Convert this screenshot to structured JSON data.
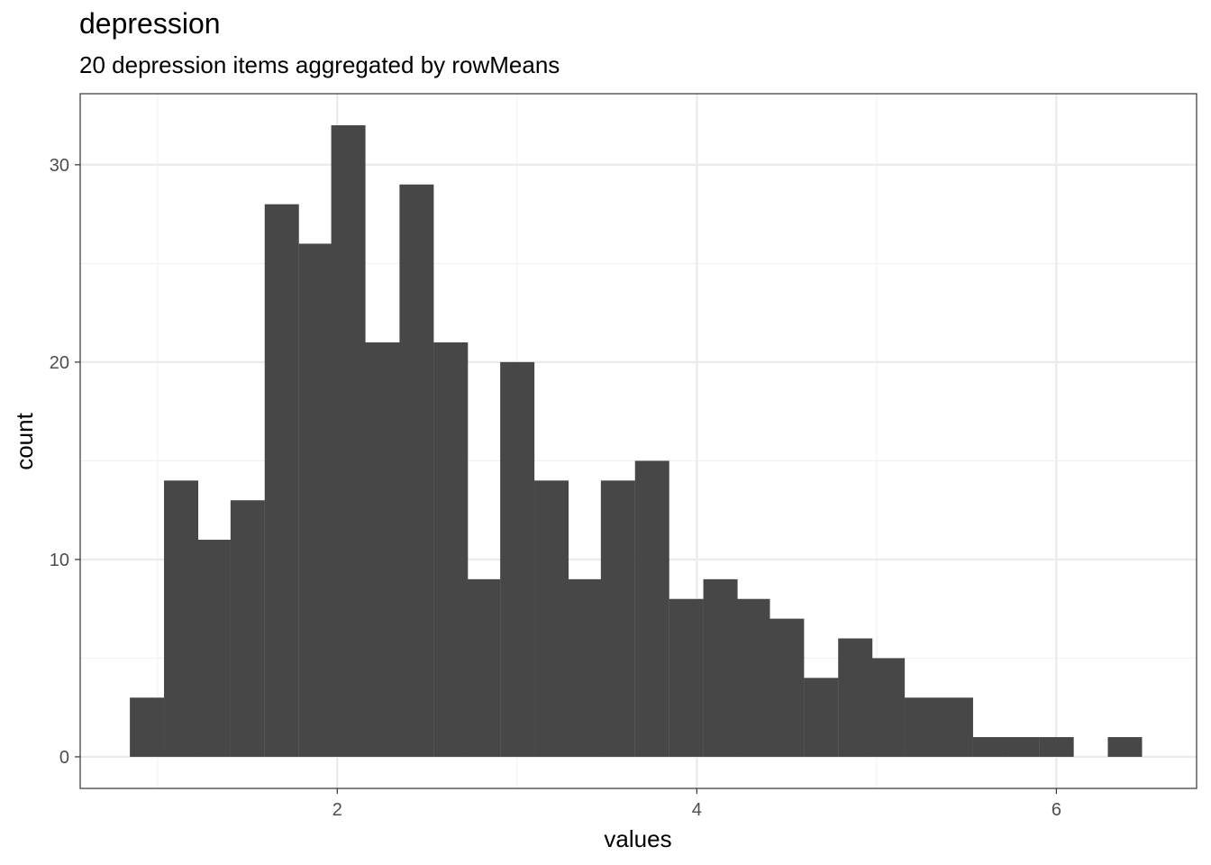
{
  "chart_data": {
    "type": "bar",
    "title": "depression",
    "subtitle": "20 depression items aggregated by rowMeans",
    "xlabel": "values",
    "ylabel": "count",
    "xlim": [
      0.57,
      6.78
    ],
    "ylim": [
      -1.6,
      33.6
    ],
    "x_ticks": [
      2,
      4,
      6
    ],
    "y_ticks": [
      0,
      10,
      20,
      30
    ],
    "x_minor_grid": [
      1,
      3,
      5
    ],
    "y_minor_grid": [
      5,
      15,
      25
    ],
    "grid": true,
    "bin_width": 0.1875,
    "bins": [
      {
        "x": 0.94,
        "count": 3
      },
      {
        "x": 1.13,
        "count": 14
      },
      {
        "x": 1.31,
        "count": 11
      },
      {
        "x": 1.5,
        "count": 13
      },
      {
        "x": 1.69,
        "count": 28
      },
      {
        "x": 1.88,
        "count": 26
      },
      {
        "x": 2.06,
        "count": 32
      },
      {
        "x": 2.25,
        "count": 21
      },
      {
        "x": 2.44,
        "count": 29
      },
      {
        "x": 2.63,
        "count": 21
      },
      {
        "x": 2.81,
        "count": 9
      },
      {
        "x": 3.0,
        "count": 20
      },
      {
        "x": 3.19,
        "count": 14
      },
      {
        "x": 3.38,
        "count": 9
      },
      {
        "x": 3.56,
        "count": 14
      },
      {
        "x": 3.75,
        "count": 15
      },
      {
        "x": 3.94,
        "count": 8
      },
      {
        "x": 4.13,
        "count": 9
      },
      {
        "x": 4.31,
        "count": 8
      },
      {
        "x": 4.5,
        "count": 7
      },
      {
        "x": 4.69,
        "count": 4
      },
      {
        "x": 4.88,
        "count": 6
      },
      {
        "x": 5.06,
        "count": 5
      },
      {
        "x": 5.25,
        "count": 3
      },
      {
        "x": 5.44,
        "count": 3
      },
      {
        "x": 5.63,
        "count": 1
      },
      {
        "x": 5.81,
        "count": 1
      },
      {
        "x": 6.0,
        "count": 1
      },
      {
        "x": 6.19,
        "count": 0
      },
      {
        "x": 6.38,
        "count": 1
      }
    ],
    "colors": {
      "bar": "#474747",
      "panel_border": "#333333",
      "grid_major": "#ebebeb",
      "grid_minor": "#f2f2f2",
      "tick_text": "#4d4d4d"
    }
  }
}
